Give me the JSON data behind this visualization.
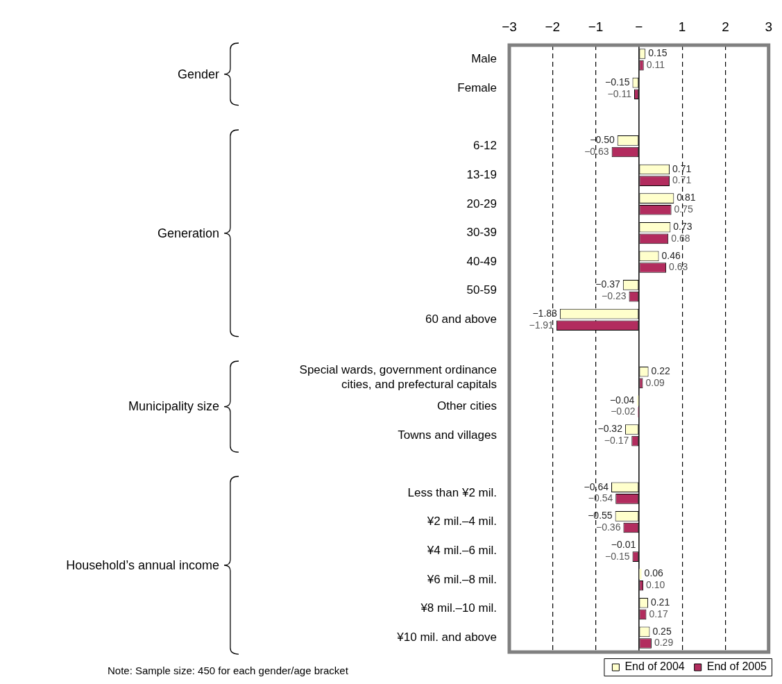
{
  "chart_data": {
    "type": "bar",
    "orientation": "horizontal",
    "categories": [
      "Male",
      "Female",
      null,
      "6-12",
      "13-19",
      "20-29",
      "30-39",
      "40-49",
      "50-59",
      "60 and above",
      null,
      "Special wards, government ordinance cities, and prefectural capitals",
      "Other cities",
      "Towns and villages",
      null,
      "Less than ¥2 mil.",
      "¥2 mil.–4 mil.",
      "¥4 mil.–6 mil.",
      "¥6 mil.–8 mil.",
      "¥8 mil.–10 mil.",
      "¥10 mil. and above"
    ],
    "series": [
      {
        "name": "End of 2004",
        "color": "#ffffcc",
        "values": [
          0.15,
          -0.15,
          null,
          -0.5,
          0.71,
          0.81,
          0.73,
          0.46,
          -0.37,
          -1.83,
          null,
          0.22,
          -0.04,
          -0.32,
          null,
          -0.64,
          -0.55,
          -0.01,
          0.06,
          0.21,
          0.25
        ],
        "value_labels": [
          "0.15",
          "−0.15",
          null,
          "−0.50",
          "0.71",
          "0.81",
          "0.73",
          "0.46",
          "−0.37",
          "−1.83",
          null,
          "0.22",
          "−0.04",
          "−0.32",
          null,
          "−0.64",
          "−0.55",
          "−0.01",
          "0.06",
          "0.21",
          "0.25"
        ]
      },
      {
        "name": "End of 2005",
        "color": "#b22c5e",
        "values": [
          0.11,
          -0.11,
          null,
          -0.63,
          0.71,
          0.75,
          0.68,
          0.63,
          -0.23,
          -1.91,
          null,
          0.09,
          -0.02,
          -0.17,
          null,
          -0.54,
          -0.36,
          -0.15,
          0.1,
          0.17,
          0.29
        ],
        "value_labels": [
          "0.11",
          "−0.11",
          null,
          "−0.63",
          "0.71",
          "0.75",
          "0.68",
          "0.63",
          "−0.23",
          "−1.91",
          null,
          "0.09",
          "−0.02",
          "−0.17",
          null,
          "−0.54",
          "−0.36",
          "−0.15",
          "0.10",
          "0.17",
          "0.29"
        ]
      }
    ],
    "xlim": [
      -3,
      3
    ],
    "xticks": [
      {
        "value": -3,
        "label": "−3"
      },
      {
        "value": -2,
        "label": "−2"
      },
      {
        "value": -1,
        "label": "−1"
      },
      {
        "value": 0,
        "label": "−"
      },
      1,
      2,
      3
    ],
    "grid": "x",
    "legend": "bottom right",
    "annotations": [
      "Gender",
      "Generation",
      "Municipality size",
      "Household’s annual income",
      "Note: Sample size: 450 for each gender/age bracket"
    ]
  }
}
